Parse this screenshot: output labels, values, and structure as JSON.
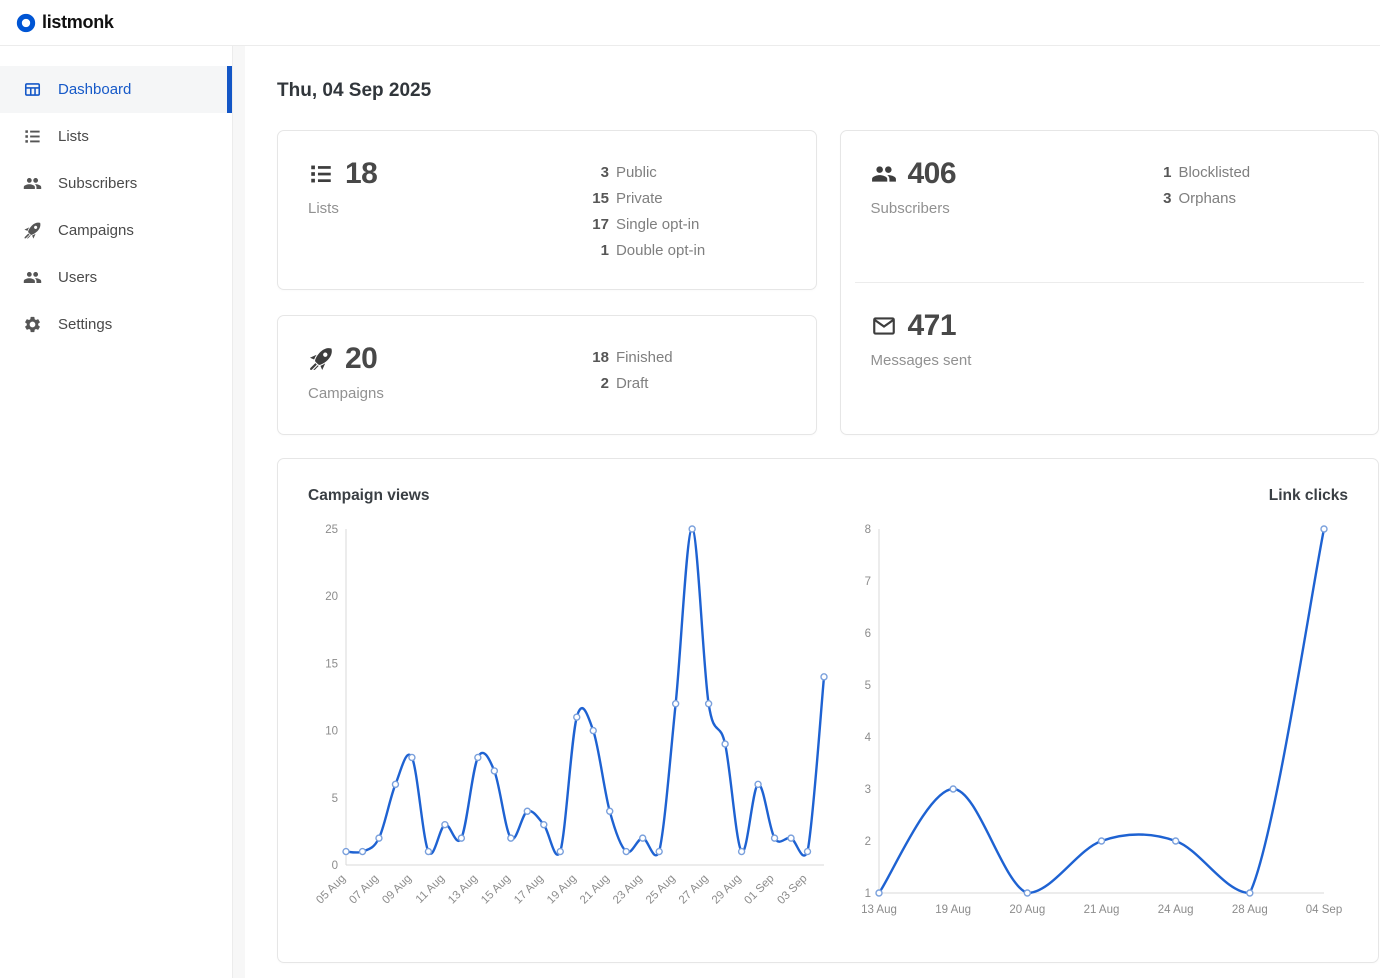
{
  "brand": {
    "name": "listmonk",
    "logo_color": "#0055d4"
  },
  "sidebar": {
    "items": [
      {
        "label": "Dashboard",
        "active": true
      },
      {
        "label": "Lists",
        "active": false
      },
      {
        "label": "Subscribers",
        "active": false
      },
      {
        "label": "Campaigns",
        "active": false
      },
      {
        "label": "Users",
        "active": false
      },
      {
        "label": "Settings",
        "active": false
      }
    ]
  },
  "page": {
    "date_heading": "Thu, 04 Sep 2025"
  },
  "cards": {
    "lists": {
      "value": "18",
      "label": "Lists",
      "stats": [
        {
          "num": "3",
          "label": "Public"
        },
        {
          "num": "15",
          "label": "Private"
        },
        {
          "num": "17",
          "label": "Single opt-in"
        },
        {
          "num": "1",
          "label": "Double opt-in"
        }
      ]
    },
    "campaigns": {
      "value": "20",
      "label": "Campaigns",
      "stats": [
        {
          "num": "18",
          "label": "Finished"
        },
        {
          "num": "2",
          "label": "Draft"
        }
      ]
    },
    "subscribers": {
      "value": "406",
      "label": "Subscribers",
      "stats": [
        {
          "num": "1",
          "label": "Blocklisted"
        },
        {
          "num": "3",
          "label": "Orphans"
        }
      ]
    },
    "messages": {
      "value": "471",
      "label": "Messages sent"
    }
  },
  "chart_data": [
    {
      "type": "line",
      "title": "Campaign views",
      "x": [
        "05 Aug",
        "06 Aug",
        "07 Aug",
        "08 Aug",
        "09 Aug",
        "10 Aug",
        "11 Aug",
        "12 Aug",
        "13 Aug",
        "14 Aug",
        "15 Aug",
        "16 Aug",
        "17 Aug",
        "18 Aug",
        "19 Aug",
        "20 Aug",
        "21 Aug",
        "22 Aug",
        "23 Aug",
        "24 Aug",
        "25 Aug",
        "26 Aug",
        "27 Aug",
        "28 Aug",
        "29 Aug",
        "30 Aug",
        "01 Sep",
        "02 Sep",
        "03 Sep",
        "04 Sep"
      ],
      "values": [
        1,
        1,
        2,
        6,
        8,
        1,
        3,
        2,
        8,
        7,
        2,
        4,
        3,
        1,
        11,
        10,
        4,
        1,
        2,
        1,
        12,
        25,
        12,
        9,
        1,
        6,
        2,
        2,
        1,
        14
      ],
      "ylim": [
        0,
        25
      ],
      "y_ticks": [
        0,
        5,
        10,
        15,
        20,
        25
      ],
      "x_label_every": 2,
      "rotate_x_labels": true,
      "grid": false,
      "legend": "none",
      "line_color": "#1e62d2",
      "marker_stroke": "#7aa0dc",
      "axis_color": "#d9d9d9",
      "tick_color": "#8c8c8c"
    },
    {
      "type": "line",
      "title": "Link clicks",
      "x": [
        "13 Aug",
        "19 Aug",
        "20 Aug",
        "21 Aug",
        "24 Aug",
        "28 Aug",
        "04 Sep"
      ],
      "values": [
        1,
        3,
        1,
        2,
        2,
        1,
        8
      ],
      "ylim": [
        1,
        8
      ],
      "y_ticks": [
        1,
        2,
        3,
        4,
        5,
        6,
        7,
        8
      ],
      "x_label_every": 1,
      "rotate_x_labels": false,
      "grid": false,
      "legend": "none",
      "line_color": "#1e62d2",
      "marker_stroke": "#7aa0dc",
      "axis_color": "#d9d9d9",
      "tick_color": "#8c8c8c"
    }
  ]
}
